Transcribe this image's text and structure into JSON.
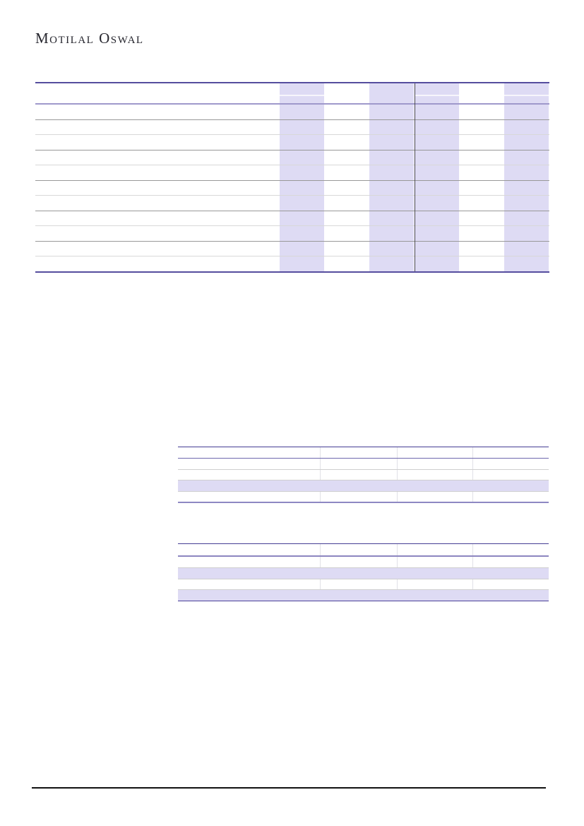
{
  "brand": {
    "logo_text": "Motilal Oswal"
  },
  "colors": {
    "highlight_band": "#dedbf4",
    "top_table_border": "#554d9e",
    "top_table_header_underline": "#9f99cb",
    "row_line_dark": "#989898",
    "row_line_light": "#d8d8d8",
    "vertical_divider": "#47444f",
    "mid_table_top_border": "#453d94",
    "mid_table1_header_underline": "#6f67ae",
    "mid_table1_bottom_border": "#8e88c3",
    "mid_table2_header_underline": "#8d86c0",
    "mid_table2_bottom_border": "#4a4198",
    "mid_row_line": "#cfcfcf",
    "footer_rule": "#121212"
  },
  "top_table": {
    "body_row_count": 11,
    "header_sub_rows": 2,
    "highlighted_column_count": 4,
    "visible_text": ""
  },
  "mid_table_1": {
    "body_row_count": 4,
    "highlighted_row_indices": [
      2
    ],
    "column_count": 4,
    "visible_text": ""
  },
  "mid_table_2": {
    "body_row_count": 4,
    "highlighted_row_indices": [
      1,
      3
    ],
    "column_count": 4,
    "visible_text": ""
  }
}
